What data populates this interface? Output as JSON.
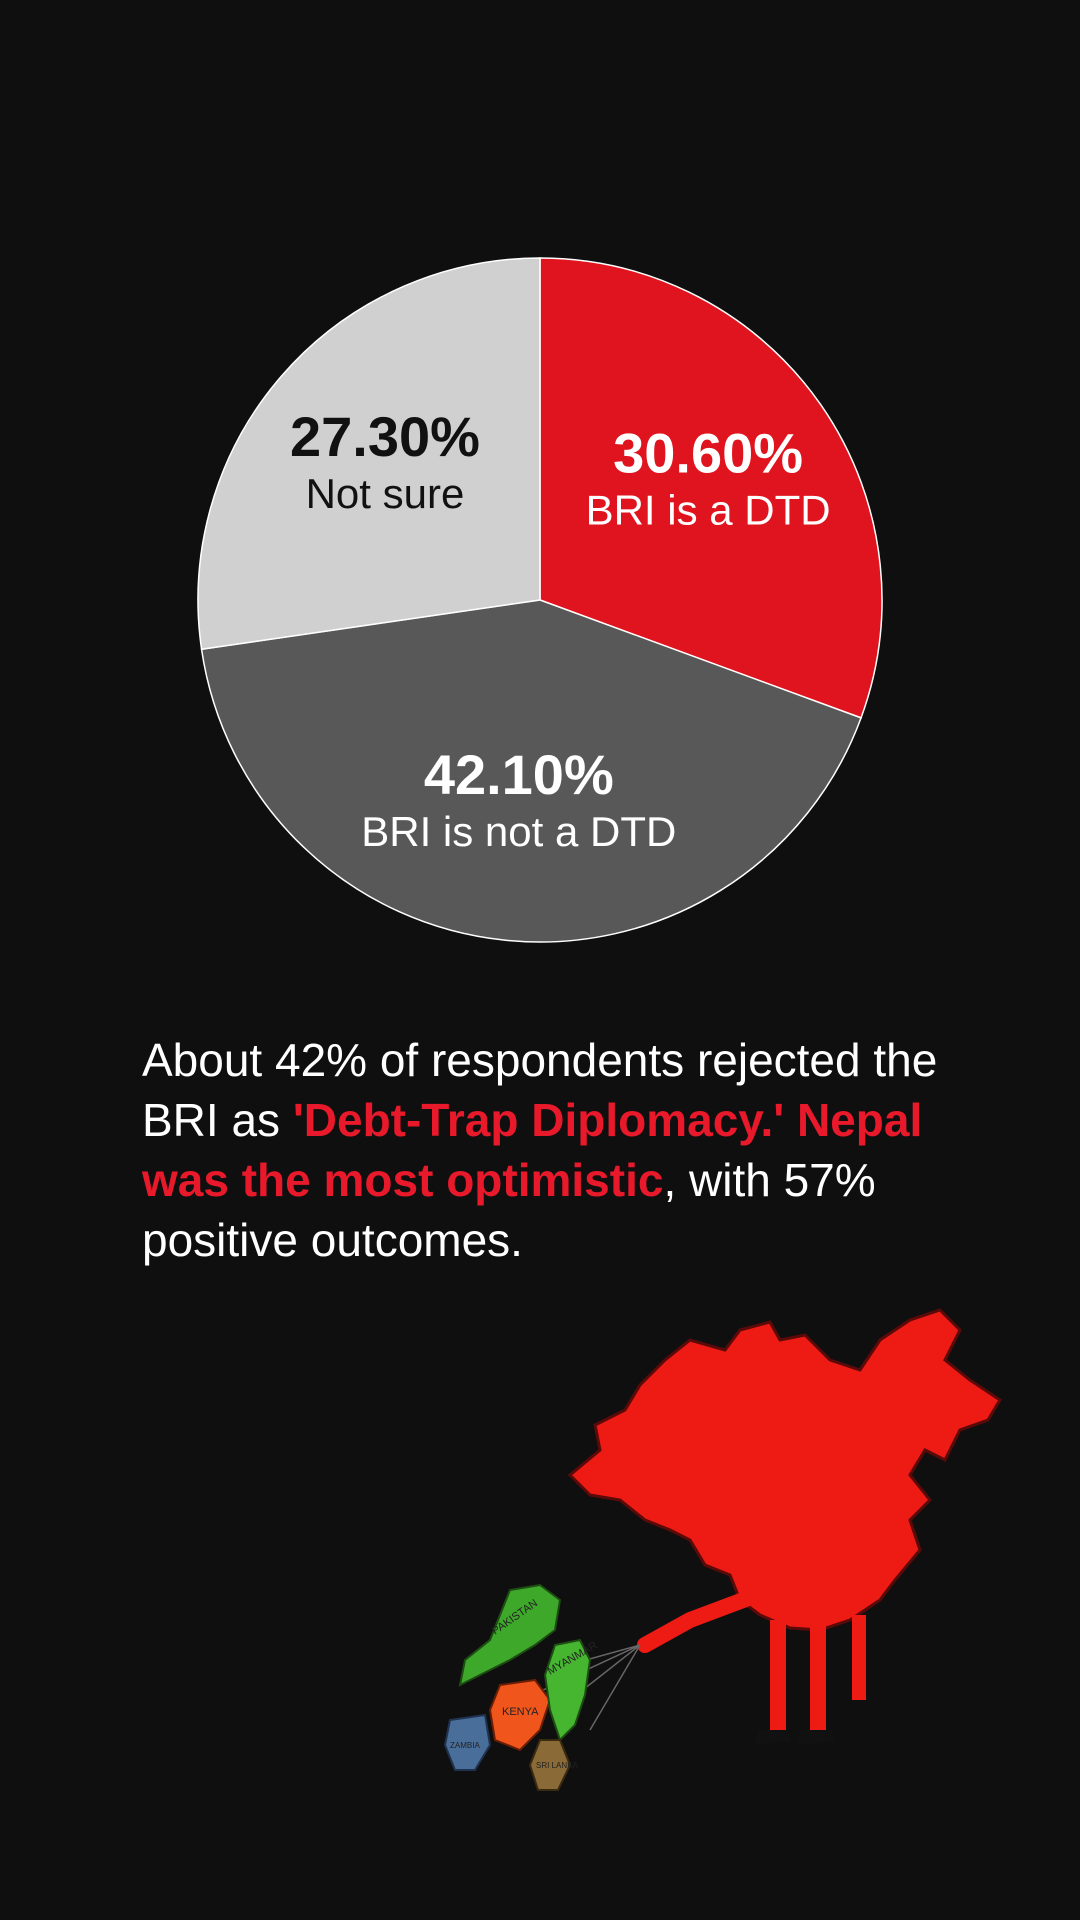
{
  "chart_data": {
    "type": "pie",
    "slices": [
      {
        "label": "BRI is a DTD",
        "value": 30.6,
        "display": "30.60%",
        "color": "#e0141e",
        "text_color": "#ffffff"
      },
      {
        "label": "BRI is not a DTD",
        "value": 42.1,
        "display": "42.10%",
        "color": "#585858",
        "text_color": "#ffffff"
      },
      {
        "label": "Not sure",
        "value": 27.3,
        "display": "27.30%",
        "color": "#d0d0d0",
        "text_color": "#111111"
      }
    ],
    "start_angle_deg": 0,
    "direction": "clockwise"
  },
  "caption": {
    "part1": "About 42% of respondents rejected the BRI as ",
    "highlight1": "'Debt-Trap Diplomacy.'",
    "part2": " ",
    "highlight2": "Nepal was the most optimistic",
    "part3": ", with 57% positive outcomes."
  },
  "illustration": {
    "labels": [
      "PAKISTAN",
      "KENYA",
      "MYANMAR",
      "SRI LANKA",
      "ZAMBIA"
    ],
    "china_color": "#ee1a14"
  }
}
